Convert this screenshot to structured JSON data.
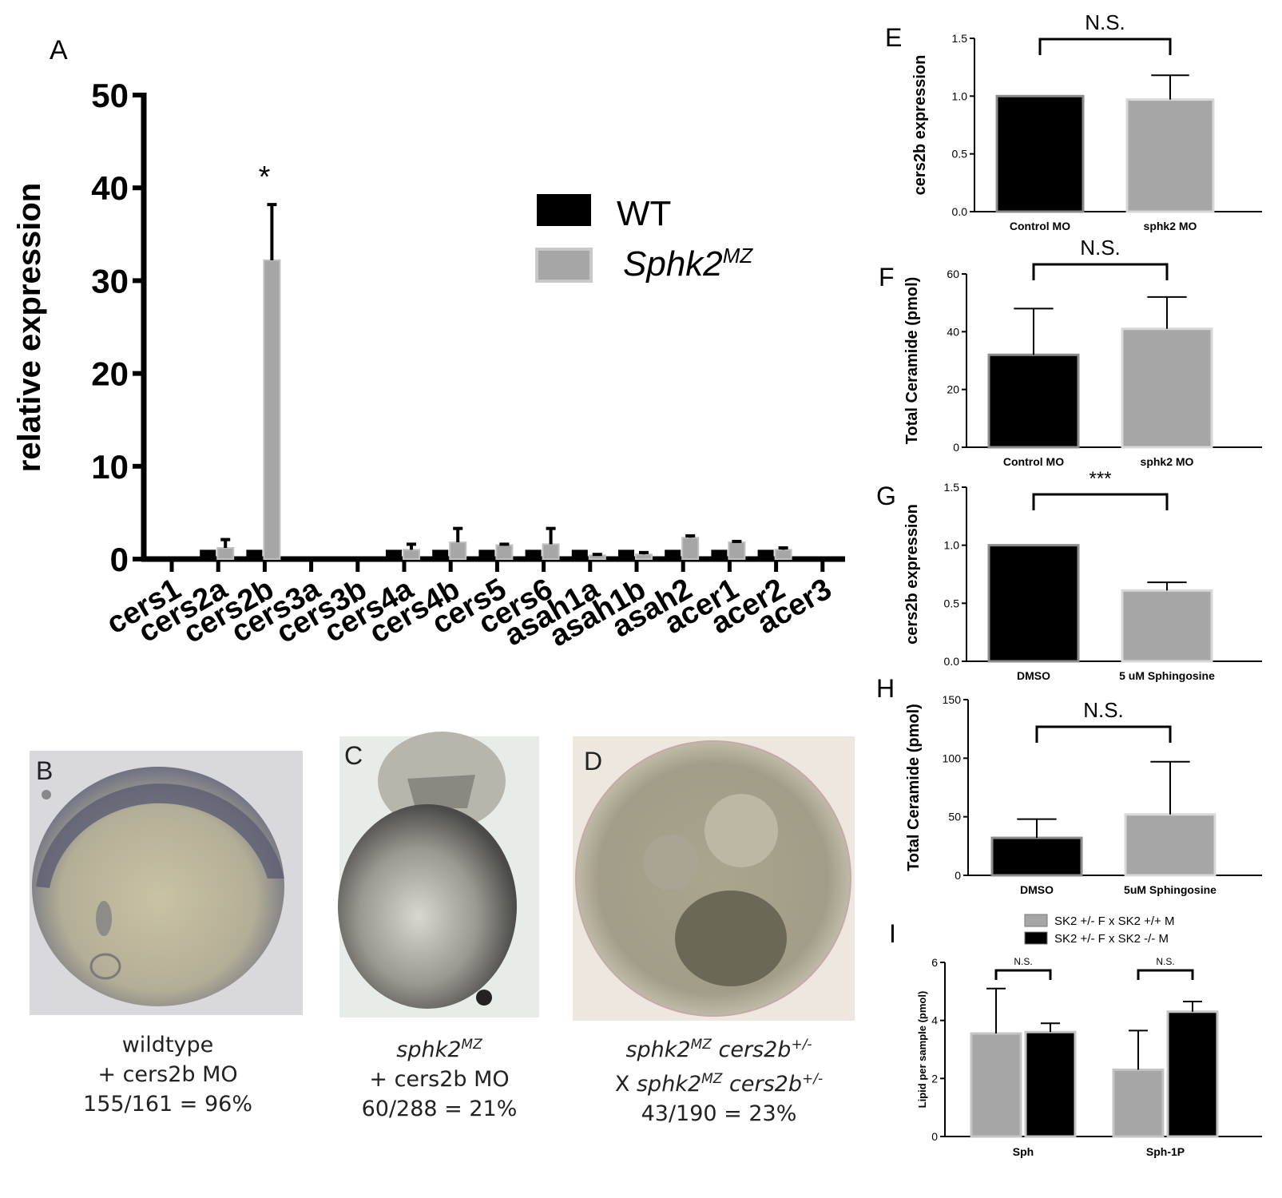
{
  "colors": {
    "wt": "#000000",
    "mutant": "#a6a6a6",
    "bar_edge": "#8c8c8c"
  },
  "panel_A": {
    "letter": "A",
    "chart_data": {
      "type": "bar",
      "ylabel": "relative expression",
      "ylim": [
        0,
        50
      ],
      "yticks": [
        "0",
        "10",
        "20",
        "30",
        "40",
        "50"
      ],
      "categories": [
        "cers1",
        "cers2a",
        "cers2b",
        "cers3a",
        "cers3b",
        "cers4a",
        "cers4b",
        "cers5",
        "cers6",
        "asah1a",
        "asah1b",
        "asah2",
        "acer1",
        "acer2",
        "acer3"
      ],
      "series": [
        {
          "name": "WT",
          "values": [
            0,
            1,
            1,
            0,
            0,
            1,
            1,
            1,
            1,
            1,
            1,
            1,
            1,
            1,
            0
          ],
          "errors": [
            0,
            0,
            0,
            0,
            0,
            0,
            0,
            0,
            0,
            0,
            0,
            0,
            0,
            0,
            0
          ]
        },
        {
          "name_main": "Sphk2",
          "name_sup": "MZ",
          "values": [
            0,
            1.2,
            32.2,
            0,
            0,
            1.0,
            1.8,
            1.5,
            1.6,
            0.4,
            0.5,
            2.3,
            1.8,
            1.0,
            0
          ],
          "errors": [
            0,
            0.9,
            6,
            0,
            0,
            0.6,
            1.5,
            0.1,
            1.7,
            0.1,
            0.2,
            0.2,
            0.1,
            0.2,
            0
          ]
        }
      ],
      "annotations": [
        {
          "category": "cers2b",
          "text": "*"
        }
      ]
    }
  },
  "panel_E": {
    "letter": "E",
    "chart_data": {
      "type": "bar",
      "ylabel": "cers2b expression",
      "categories": [
        "Control MO",
        "sphk2 MO"
      ],
      "values": [
        1.0,
        0.97
      ],
      "errors": [
        0,
        0.21
      ],
      "ylim": [
        0,
        1.5
      ],
      "yticks": [
        "0.0",
        "0.5",
        "1.0",
        "1.5"
      ],
      "significance": "N.S."
    }
  },
  "panel_F": {
    "letter": "F",
    "chart_data": {
      "type": "bar",
      "ylabel": "Total Ceramide (pmol)",
      "categories": [
        "Control MO",
        "sphk2 MO"
      ],
      "values": [
        32,
        41
      ],
      "errors": [
        16,
        11
      ],
      "ylim": [
        0,
        60
      ],
      "yticks": [
        "0",
        "20",
        "40",
        "60"
      ],
      "significance": "N.S."
    }
  },
  "panel_G": {
    "letter": "G",
    "chart_data": {
      "type": "bar",
      "ylabel": "cers2b expression",
      "categories": [
        "DMSO",
        "5 uM Sphingosine"
      ],
      "values": [
        1.0,
        0.61
      ],
      "errors": [
        0,
        0.07
      ],
      "ylim": [
        0,
        1.5
      ],
      "yticks": [
        "0.0",
        "0.5",
        "1.0",
        "1.5"
      ],
      "significance": "***"
    }
  },
  "panel_H": {
    "letter": "H",
    "chart_data": {
      "type": "bar",
      "ylabel": "Total Ceramide (pmol)",
      "categories": [
        "DMSO",
        "5uM Sphingosine"
      ],
      "values": [
        32,
        52
      ],
      "errors": [
        16,
        45
      ],
      "ylim": [
        0,
        150
      ],
      "yticks": [
        "0",
        "50",
        "100",
        "150"
      ],
      "significance": "N.S."
    }
  },
  "panel_I": {
    "letter": "I",
    "chart_data": {
      "type": "bar",
      "ylabel": "Lipid per sample (pmol)",
      "categories": [
        "Sph",
        "Sph-1P"
      ],
      "series": [
        {
          "name": "SK2 +/- F x SK2 +/+ M",
          "values": [
            3.55,
            2.3
          ],
          "errors": [
            1.55,
            1.35
          ]
        },
        {
          "name": "SK2 +/- F x SK2 -/- M",
          "values": [
            3.6,
            4.3
          ],
          "errors": [
            0.3,
            0.35
          ]
        }
      ],
      "ylim": [
        0,
        6
      ],
      "yticks": [
        "0",
        "2",
        "4",
        "6"
      ],
      "significance": [
        "N.S.",
        "N.S."
      ]
    }
  },
  "panel_B": {
    "letter": "B",
    "caption": [
      "wildtype",
      "+ cers2b MO",
      "155/161 = 96%"
    ]
  },
  "panel_C": {
    "letter": "C",
    "caption_gene": "sphk2",
    "caption_sup": "MZ",
    "caption": [
      "+ cers2b MO",
      "60/288 = 21%"
    ]
  },
  "panel_D": {
    "letter": "D",
    "gene": "sphk2",
    "sup_mz": "MZ",
    "gene2": "cers2b",
    "sup_het": "+/-",
    "cross": "X",
    "caption_last": "43/190 = 23%"
  }
}
